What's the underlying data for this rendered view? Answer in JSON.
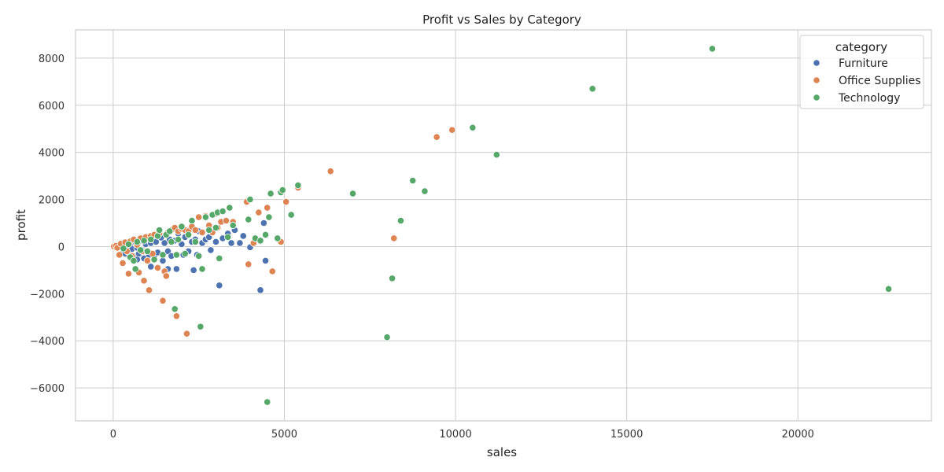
{
  "chart_data": {
    "type": "scatter",
    "title": "Profit vs Sales by Category",
    "xlabel": "sales",
    "ylabel": "profit",
    "xlim": [
      -1100,
      23900
    ],
    "ylim": [
      -7400,
      9200
    ],
    "xticks": [
      0,
      5000,
      10000,
      15000,
      20000
    ],
    "yticks": [
      -6000,
      -4000,
      -2000,
      0,
      2000,
      4000,
      6000,
      8000
    ],
    "xtick_labels": [
      "0",
      "5000",
      "10000",
      "15000",
      "20000"
    ],
    "ytick_labels": [
      "−6000",
      "−4000",
      "−2000",
      "0",
      "2000",
      "4000",
      "6000",
      "8000"
    ],
    "grid": true,
    "legend": {
      "title": "category",
      "position": "top-right"
    },
    "series": [
      {
        "name": "Furniture",
        "color": "#4c72b0",
        "points": [
          [
            150,
            20
          ],
          [
            250,
            -50
          ],
          [
            300,
            -150
          ],
          [
            350,
            -300
          ],
          [
            400,
            60
          ],
          [
            450,
            -250
          ],
          [
            500,
            120
          ],
          [
            550,
            -100
          ],
          [
            600,
            -400
          ],
          [
            650,
            180
          ],
          [
            700,
            -50
          ],
          [
            750,
            -300
          ],
          [
            800,
            250
          ],
          [
            850,
            -150
          ],
          [
            900,
            -500
          ],
          [
            950,
            100
          ],
          [
            1000,
            300
          ],
          [
            1050,
            -350
          ],
          [
            1100,
            150
          ],
          [
            1200,
            -450
          ],
          [
            1250,
            200
          ],
          [
            1300,
            -250
          ],
          [
            1400,
            380
          ],
          [
            1450,
            -600
          ],
          [
            1500,
            150
          ],
          [
            1600,
            -200
          ],
          [
            1650,
            300
          ],
          [
            1700,
            -400
          ],
          [
            1800,
            250
          ],
          [
            1850,
            -950
          ],
          [
            1900,
            550
          ],
          [
            2000,
            100
          ],
          [
            2050,
            -350
          ],
          [
            2100,
            400
          ],
          [
            2200,
            -200
          ],
          [
            2300,
            200
          ],
          [
            2350,
            -1000
          ],
          [
            2400,
            300
          ],
          [
            2450,
            -350
          ],
          [
            2500,
            650
          ],
          [
            2600,
            150
          ],
          [
            2700,
            300
          ],
          [
            2800,
            400
          ],
          [
            2850,
            -150
          ],
          [
            2900,
            600
          ],
          [
            3000,
            200
          ],
          [
            3100,
            -1650
          ],
          [
            3200,
            350
          ],
          [
            3350,
            550
          ],
          [
            3450,
            150
          ],
          [
            3550,
            700
          ],
          [
            3700,
            150
          ],
          [
            3800,
            450
          ],
          [
            4000,
            -30
          ],
          [
            4300,
            -1850
          ],
          [
            4400,
            1000
          ],
          [
            4450,
            -600
          ],
          [
            700,
            -550
          ],
          [
            1100,
            -850
          ],
          [
            1600,
            -950
          ]
        ]
      },
      {
        "name": "Office Supplies",
        "color": "#dd8452",
        "points": [
          [
            20,
            10
          ],
          [
            80,
            30
          ],
          [
            120,
            -50
          ],
          [
            180,
            -350
          ],
          [
            220,
            120
          ],
          [
            280,
            -700
          ],
          [
            350,
            180
          ],
          [
            400,
            -200
          ],
          [
            450,
            -1150
          ],
          [
            500,
            220
          ],
          [
            550,
            -400
          ],
          [
            600,
            300
          ],
          [
            650,
            -950
          ],
          [
            700,
            80
          ],
          [
            750,
            -1100
          ],
          [
            800,
            350
          ],
          [
            850,
            -200
          ],
          [
            900,
            -1450
          ],
          [
            950,
            400
          ],
          [
            1000,
            -600
          ],
          [
            1050,
            -1850
          ],
          [
            1100,
            450
          ],
          [
            1150,
            -300
          ],
          [
            1200,
            500
          ],
          [
            1300,
            -900
          ],
          [
            1350,
            550
          ],
          [
            1450,
            -2300
          ],
          [
            1500,
            -1050
          ],
          [
            1550,
            -1250
          ],
          [
            1600,
            600
          ],
          [
            1700,
            700
          ],
          [
            1800,
            800
          ],
          [
            1850,
            -2950
          ],
          [
            1900,
            650
          ],
          [
            2000,
            750
          ],
          [
            2100,
            700
          ],
          [
            2150,
            -3700
          ],
          [
            2200,
            650
          ],
          [
            2300,
            850
          ],
          [
            2400,
            700
          ],
          [
            2500,
            1250
          ],
          [
            2600,
            600
          ],
          [
            2700,
            1300
          ],
          [
            2800,
            900
          ],
          [
            2900,
            600
          ],
          [
            3000,
            1400
          ],
          [
            3050,
            800
          ],
          [
            3150,
            1050
          ],
          [
            3300,
            1100
          ],
          [
            3500,
            1050
          ],
          [
            3900,
            1900
          ],
          [
            3950,
            -750
          ],
          [
            4100,
            150
          ],
          [
            4250,
            1450
          ],
          [
            4500,
            1650
          ],
          [
            4650,
            -1050
          ],
          [
            4900,
            200
          ],
          [
            5050,
            1900
          ],
          [
            5400,
            2500
          ],
          [
            6350,
            3200
          ],
          [
            8200,
            350
          ],
          [
            9450,
            4650
          ],
          [
            9900,
            4950
          ]
        ]
      },
      {
        "name": "Technology",
        "color": "#55a868",
        "points": [
          [
            300,
            -80
          ],
          [
            450,
            100
          ],
          [
            500,
            -450
          ],
          [
            600,
            -600
          ],
          [
            650,
            -950
          ],
          [
            700,
            200
          ],
          [
            800,
            -150
          ],
          [
            900,
            250
          ],
          [
            1000,
            -200
          ],
          [
            1100,
            300
          ],
          [
            1200,
            -550
          ],
          [
            1300,
            450
          ],
          [
            1350,
            700
          ],
          [
            1450,
            -350
          ],
          [
            1550,
            500
          ],
          [
            1650,
            650
          ],
          [
            1700,
            200
          ],
          [
            1800,
            -2650
          ],
          [
            1850,
            -350
          ],
          [
            1900,
            300
          ],
          [
            2000,
            850
          ],
          [
            2100,
            -300
          ],
          [
            2200,
            500
          ],
          [
            2300,
            1100
          ],
          [
            2400,
            200
          ],
          [
            2500,
            -400
          ],
          [
            2550,
            -3400
          ],
          [
            2600,
            -950
          ],
          [
            2700,
            1250
          ],
          [
            2800,
            700
          ],
          [
            2900,
            1350
          ],
          [
            3000,
            800
          ],
          [
            3050,
            1450
          ],
          [
            3100,
            -500
          ],
          [
            3200,
            1500
          ],
          [
            3350,
            400
          ],
          [
            3400,
            1650
          ],
          [
            3500,
            900
          ],
          [
            3950,
            1150
          ],
          [
            4000,
            2000
          ],
          [
            4150,
            350
          ],
          [
            4300,
            250
          ],
          [
            4450,
            500
          ],
          [
            4500,
            -6600
          ],
          [
            4550,
            1250
          ],
          [
            4600,
            2250
          ],
          [
            4800,
            350
          ],
          [
            4900,
            2300
          ],
          [
            4950,
            2400
          ],
          [
            5200,
            1350
          ],
          [
            5400,
            2600
          ],
          [
            7000,
            2250
          ],
          [
            8000,
            -3850
          ],
          [
            8150,
            -1350
          ],
          [
            8400,
            1100
          ],
          [
            8750,
            2800
          ],
          [
            9100,
            2350
          ],
          [
            10500,
            5050
          ],
          [
            11200,
            3900
          ],
          [
            14000,
            6700
          ],
          [
            17500,
            8400
          ],
          [
            22650,
            -1800
          ]
        ]
      }
    ]
  }
}
